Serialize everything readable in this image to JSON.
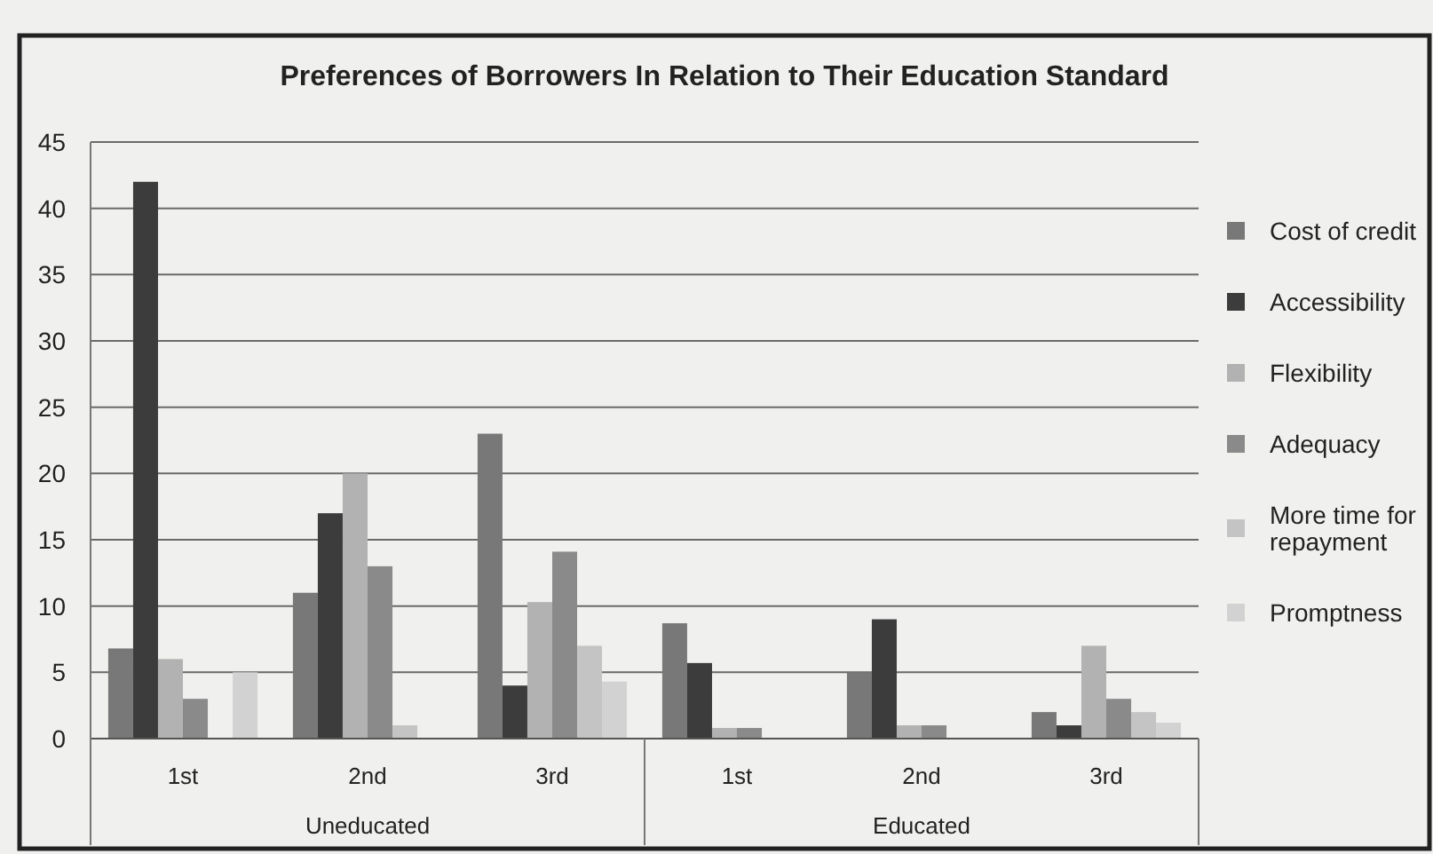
{
  "chart_data": {
    "type": "bar",
    "title": "Preferences of Borrowers In Relation to Their Education Standard",
    "categories": [
      "1st",
      "2nd",
      "3rd",
      "1st",
      "2nd",
      "3rd"
    ],
    "series": [
      {
        "name": "Cost of credit",
        "color": "#787878",
        "values": [
          6.8,
          11,
          23,
          8.7,
          5,
          2
        ]
      },
      {
        "name": "Accessibility",
        "color": "#3c3c3c",
        "values": [
          42,
          17,
          4,
          5.7,
          9,
          1
        ]
      },
      {
        "name": "Flexibility",
        "color": "#b2b2b2",
        "values": [
          6,
          20,
          10.3,
          0.8,
          1,
          7
        ]
      },
      {
        "name": "Adequacy",
        "color": "#8a8a8a",
        "values": [
          3,
          13,
          14.1,
          0.8,
          1,
          3
        ]
      },
      {
        "name": "More time for repayment",
        "color": "#c4c4c4",
        "values": [
          0,
          1,
          7,
          0,
          0,
          2
        ]
      },
      {
        "name": "Promptness",
        "color": "#d2d2d2",
        "values": [
          5,
          0,
          4.3,
          0,
          0,
          1.2
        ]
      }
    ],
    "ylim": [
      0,
      45
    ],
    "yticks": [
      0,
      5,
      10,
      15,
      20,
      25,
      30,
      35,
      40,
      45
    ],
    "grid": "y",
    "legend": "right",
    "annotations": [
      "Uneducated",
      "Educated"
    ]
  }
}
